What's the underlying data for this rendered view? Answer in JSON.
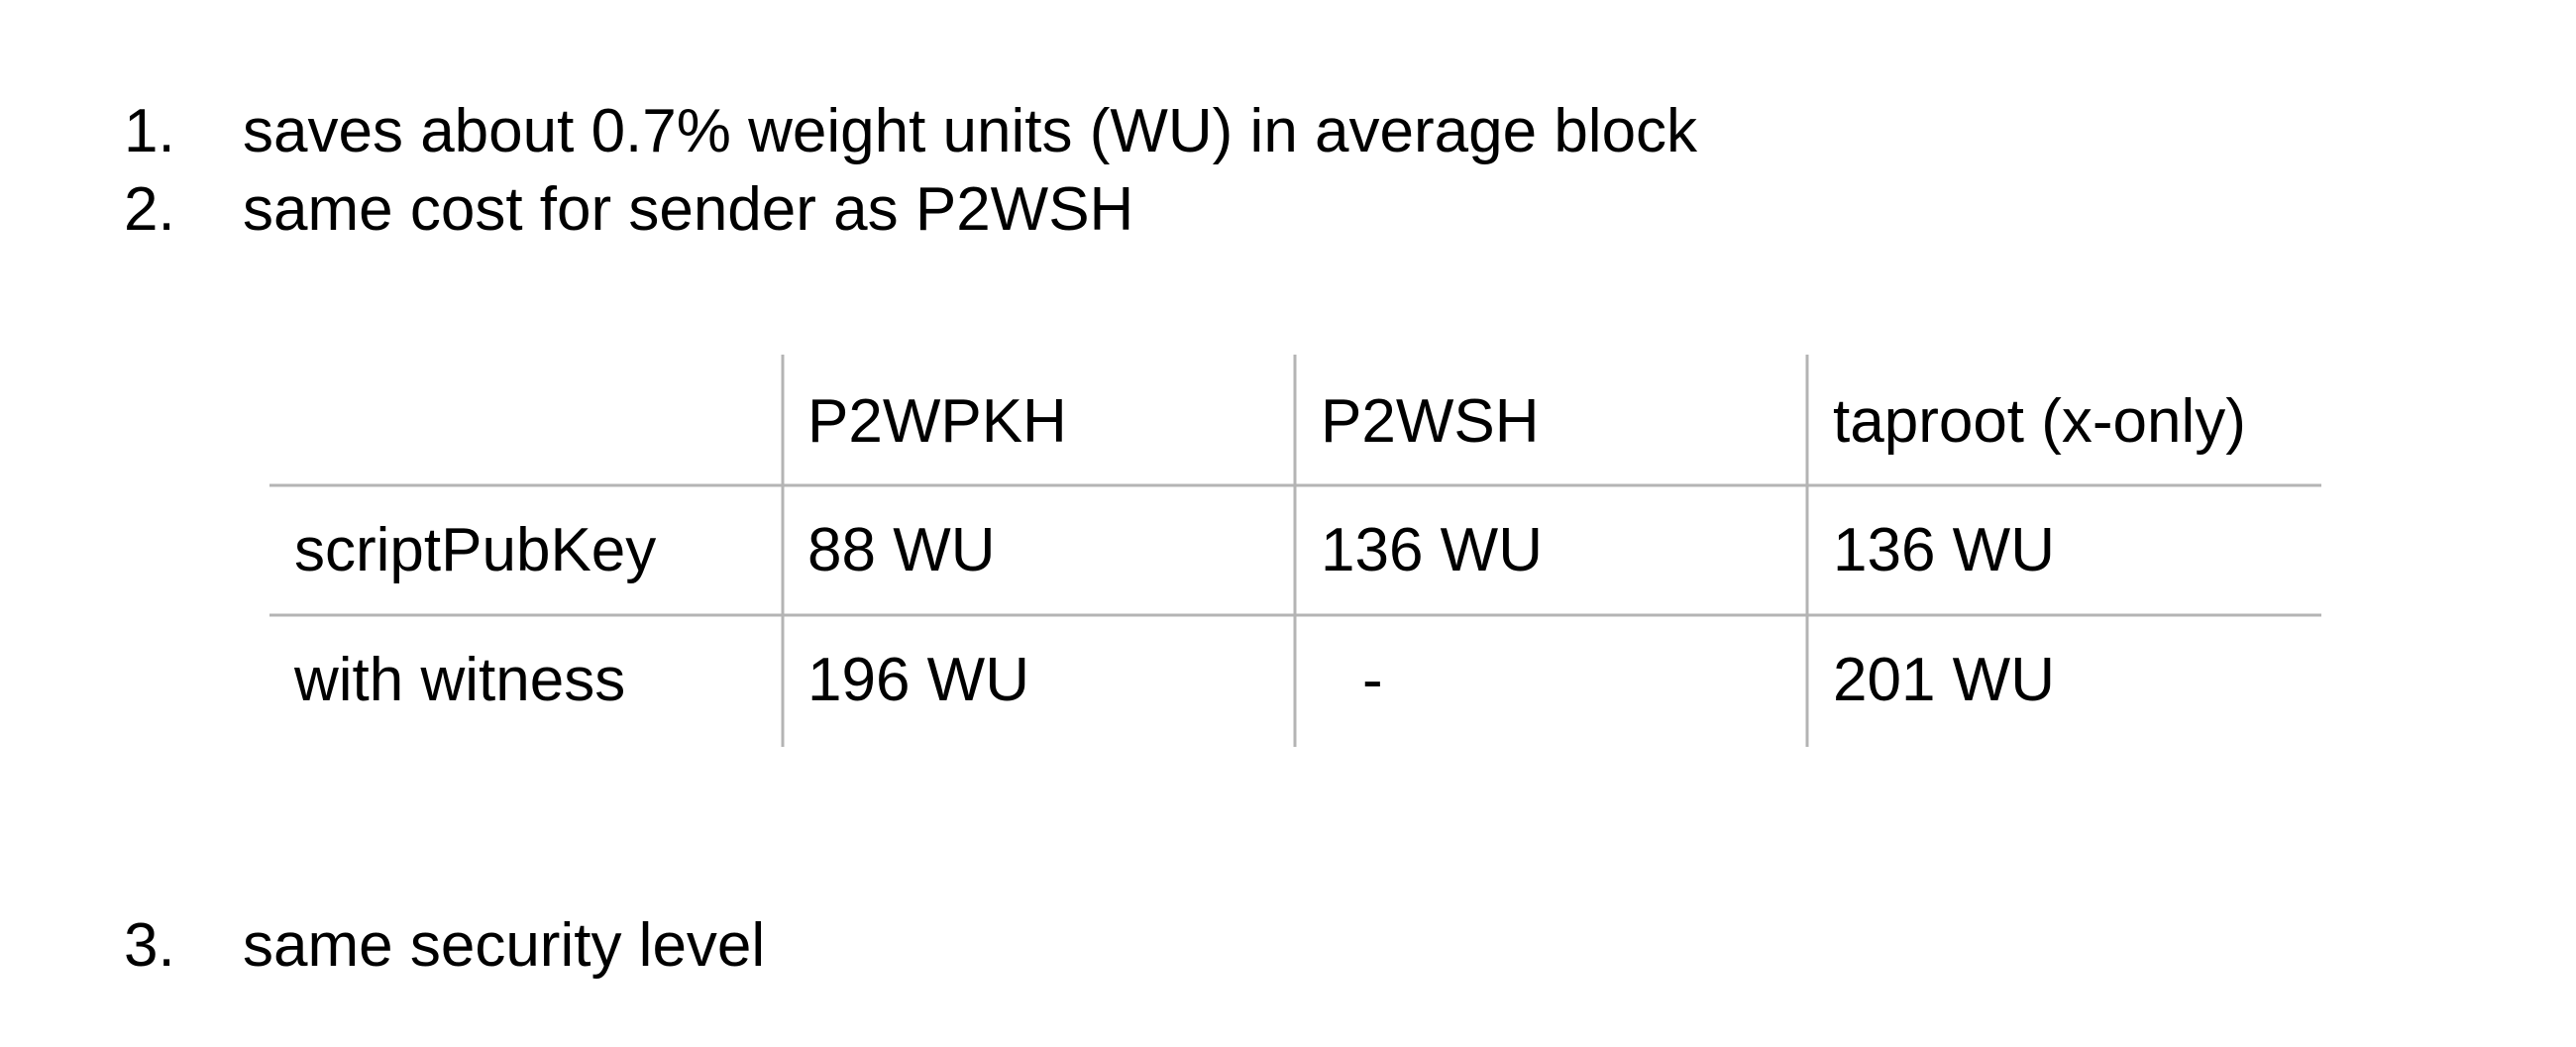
{
  "list": [
    {
      "number": "1.",
      "text": "saves about 0.7% weight units (WU) in average block"
    },
    {
      "number": "2.",
      "text": "same cost for sender as P2WSH"
    },
    {
      "number": "3.",
      "text": "same security level"
    }
  ],
  "table": {
    "headers": [
      "",
      "P2WPKH",
      "P2WSH",
      "taproot (x-only)"
    ],
    "rows": [
      {
        "label": "scriptPubKey",
        "cells": [
          "88 WU",
          "136 WU",
          "136 WU"
        ]
      },
      {
        "label": "with witness",
        "cells": [
          "196 WU",
          "-",
          "201 WU"
        ]
      }
    ]
  },
  "colors": {
    "text": "#000000",
    "table_line": "#b4b4b4",
    "background": "#ffffff"
  }
}
